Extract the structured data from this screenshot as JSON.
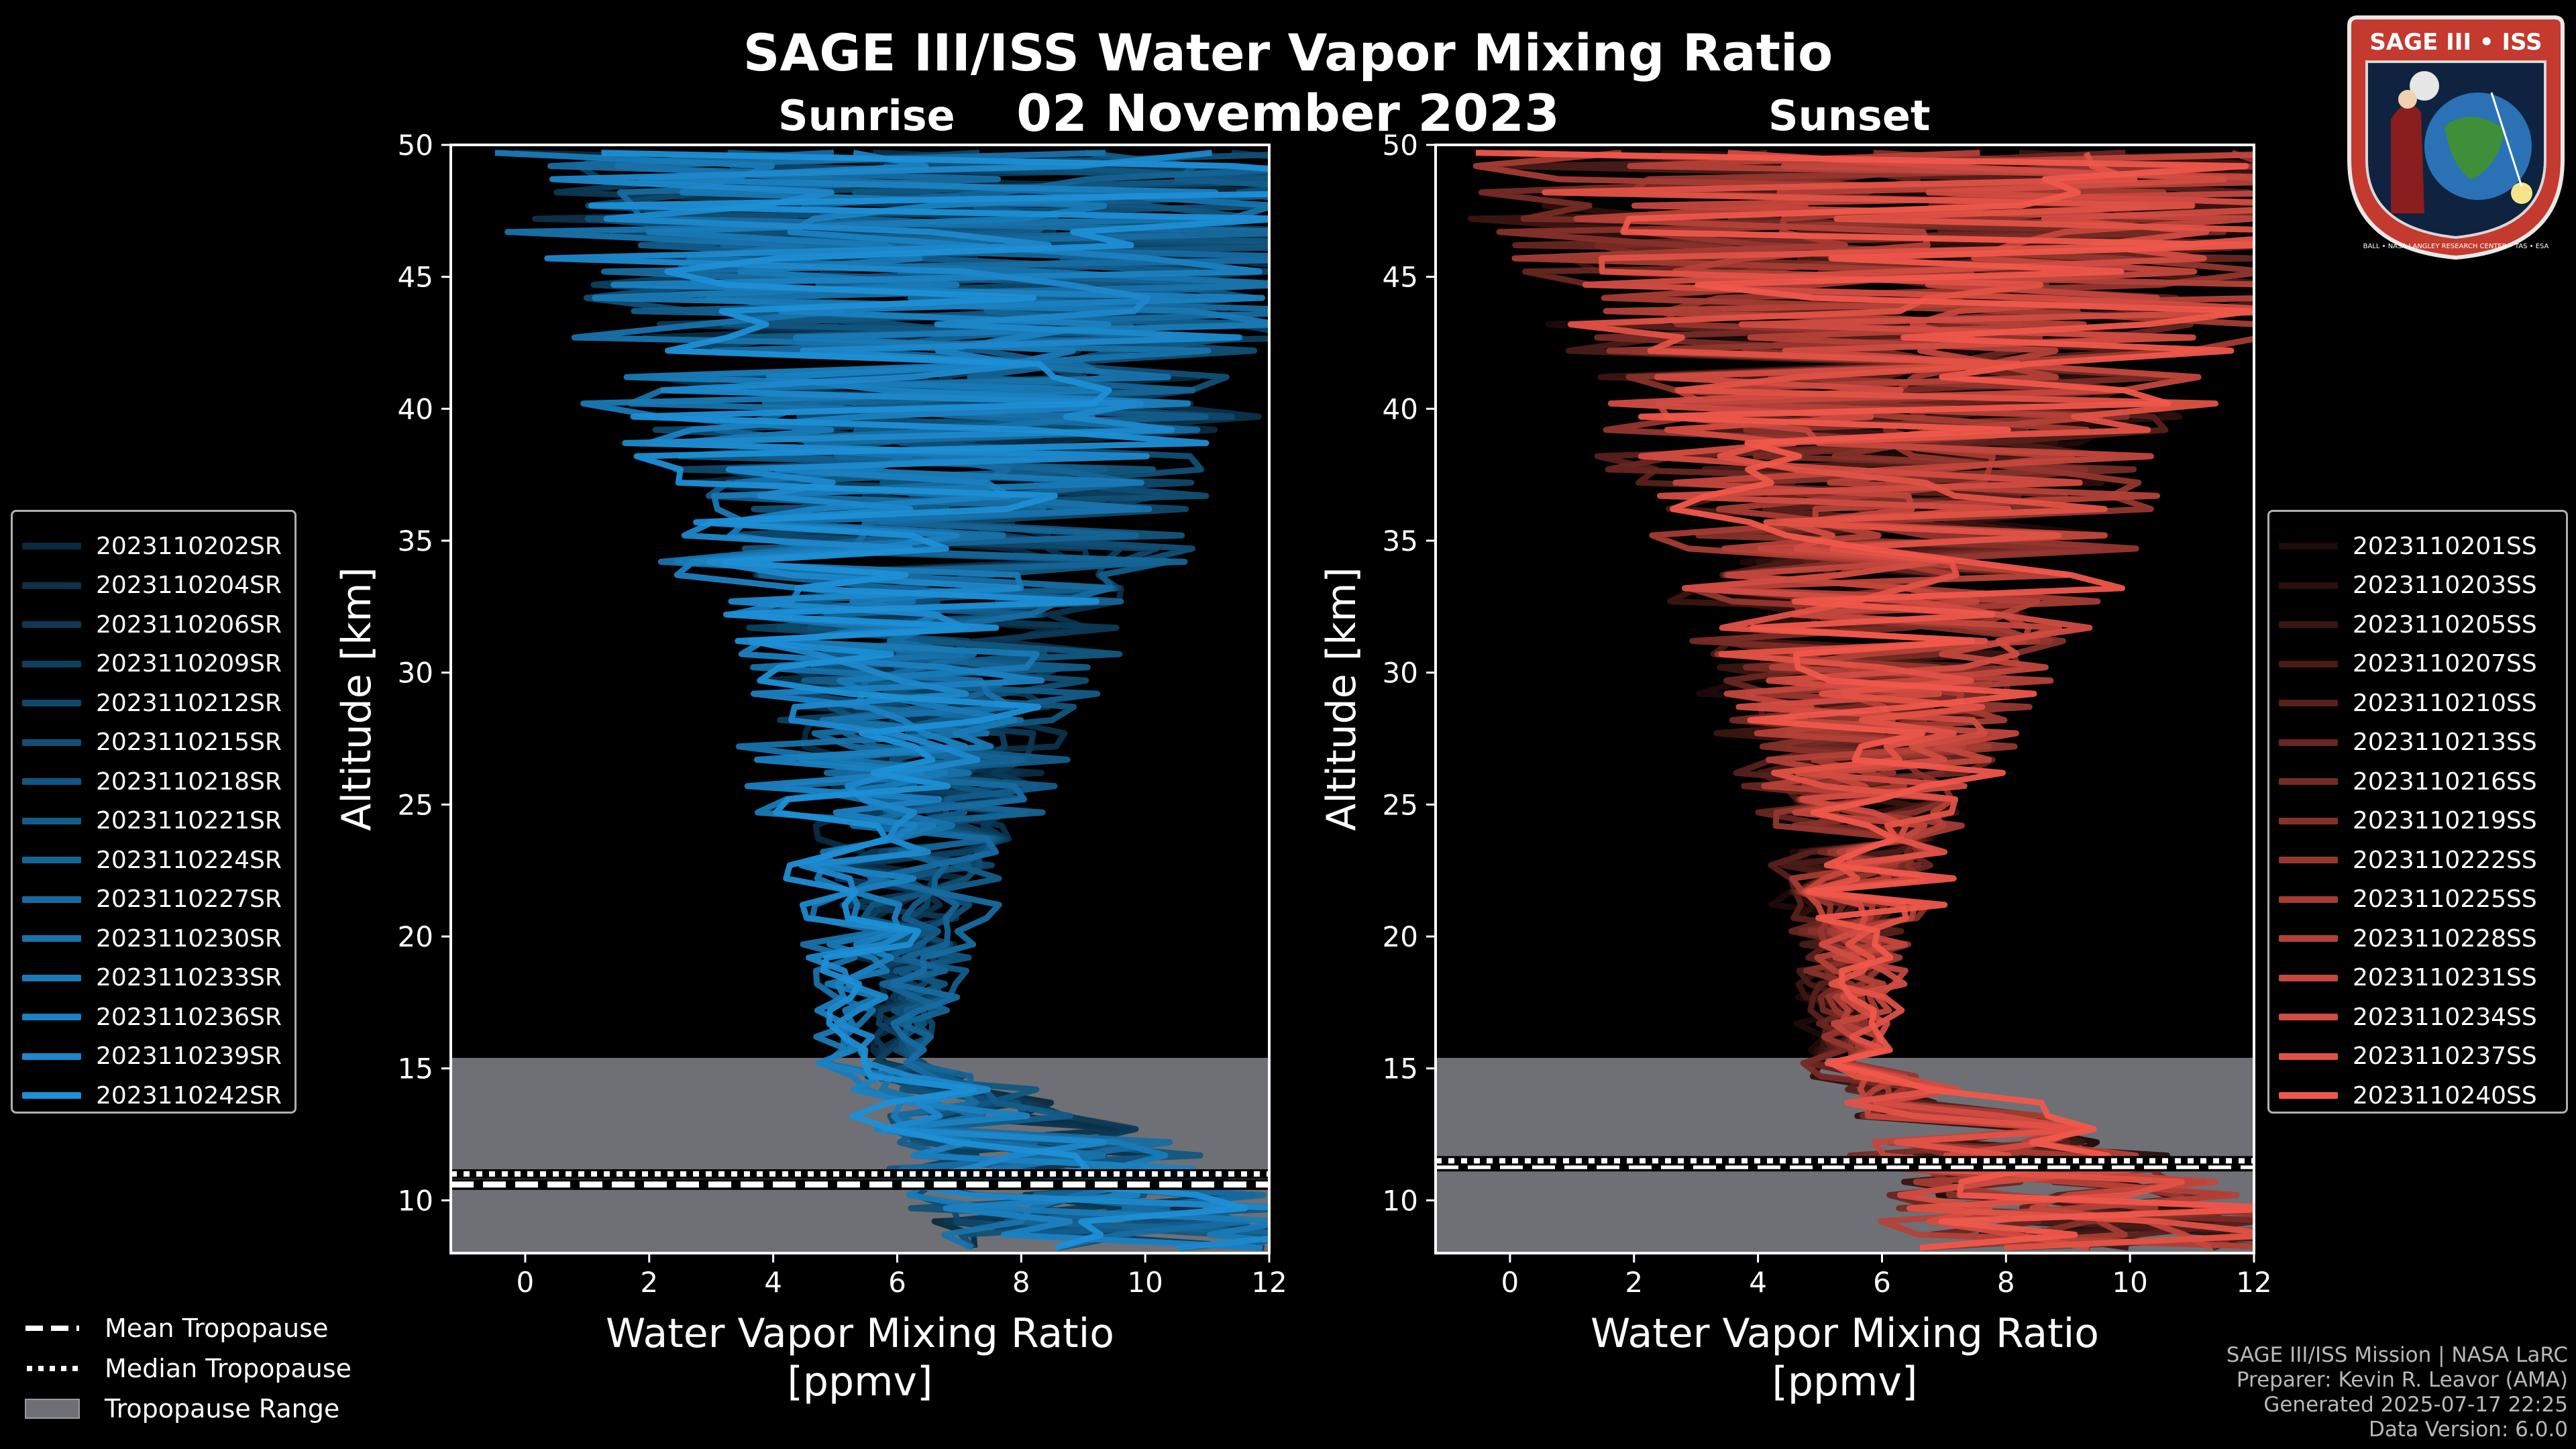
{
  "title": "SAGE III/ISS Water Vapor Mixing Ratio",
  "date": "02 November 2023",
  "chart_data": [
    {
      "type": "line",
      "panel": "Sunrise",
      "xlabel": "Water Vapor Mixing Ratio\n[ppmv]",
      "xlabel_line1": "Water Vapor Mixing Ratio",
      "xlabel_line2": "[ppmv]",
      "ylabel": "Altitude [km]",
      "xlim": [
        -1.2,
        12
      ],
      "ylim": [
        8,
        50
      ],
      "xticks": [
        0,
        2,
        4,
        6,
        8,
        10,
        12
      ],
      "yticks": [
        10,
        15,
        20,
        25,
        30,
        35,
        40,
        45,
        50
      ],
      "series_color": "#1e8fd6",
      "tropopause": {
        "mean": 10.6,
        "median": 11.0,
        "range": [
          8,
          15.4
        ]
      },
      "series": [
        {
          "name": "2023110202SR"
        },
        {
          "name": "2023110204SR"
        },
        {
          "name": "2023110206SR"
        },
        {
          "name": "2023110209SR"
        },
        {
          "name": "2023110212SR"
        },
        {
          "name": "2023110215SR"
        },
        {
          "name": "2023110218SR"
        },
        {
          "name": "2023110221SR"
        },
        {
          "name": "2023110224SR"
        },
        {
          "name": "2023110227SR"
        },
        {
          "name": "2023110230SR"
        },
        {
          "name": "2023110233SR"
        },
        {
          "name": "2023110236SR"
        },
        {
          "name": "2023110239SR"
        },
        {
          "name": "2023110242SR"
        }
      ]
    },
    {
      "type": "line",
      "panel": "Sunset",
      "xlabel": "Water Vapor Mixing Ratio\n[ppmv]",
      "xlabel_line1": "Water Vapor Mixing Ratio",
      "xlabel_line2": "[ppmv]",
      "ylabel": "Altitude [km]",
      "xlim": [
        -1.2,
        12
      ],
      "ylim": [
        8,
        50
      ],
      "xticks": [
        0,
        2,
        4,
        6,
        8,
        10,
        12
      ],
      "yticks": [
        10,
        15,
        20,
        25,
        30,
        35,
        40,
        45,
        50
      ],
      "series_color": "#f0574b",
      "tropopause": {
        "mean": 11.3,
        "median": 11.5,
        "range": [
          8,
          15.4
        ]
      },
      "series": [
        {
          "name": "2023110201SS"
        },
        {
          "name": "2023110203SS"
        },
        {
          "name": "2023110205SS"
        },
        {
          "name": "2023110207SS"
        },
        {
          "name": "2023110210SS"
        },
        {
          "name": "2023110213SS"
        },
        {
          "name": "2023110216SS"
        },
        {
          "name": "2023110219SS"
        },
        {
          "name": "2023110222SS"
        },
        {
          "name": "2023110225SS"
        },
        {
          "name": "2023110228SS"
        },
        {
          "name": "2023110231SS"
        },
        {
          "name": "2023110234SS"
        },
        {
          "name": "2023110237SS"
        },
        {
          "name": "2023110240SS"
        }
      ]
    }
  ],
  "tropopause_legend": {
    "mean": "Mean Tropopause",
    "median": "Median Tropopause",
    "range": "Tropopause Range"
  },
  "logo": {
    "text": "SAGE III • ISS",
    "subtext": "BALL • NASA LANGLEY RESEARCH CENTER • TAS • ESA"
  },
  "credits": {
    "line1": "SAGE III/ISS Mission | NASA LaRC",
    "line2": "Preparer: Kevin R. Leavor (AMA)",
    "line3": "Generated 2025-07-17 22:25",
    "line4": "Data Version: 6.0.0"
  },
  "colors": {
    "sunrise": "#1e8fd6",
    "sunset": "#f0574b",
    "tropopause_range": "#6e7075",
    "background": "#000000"
  }
}
